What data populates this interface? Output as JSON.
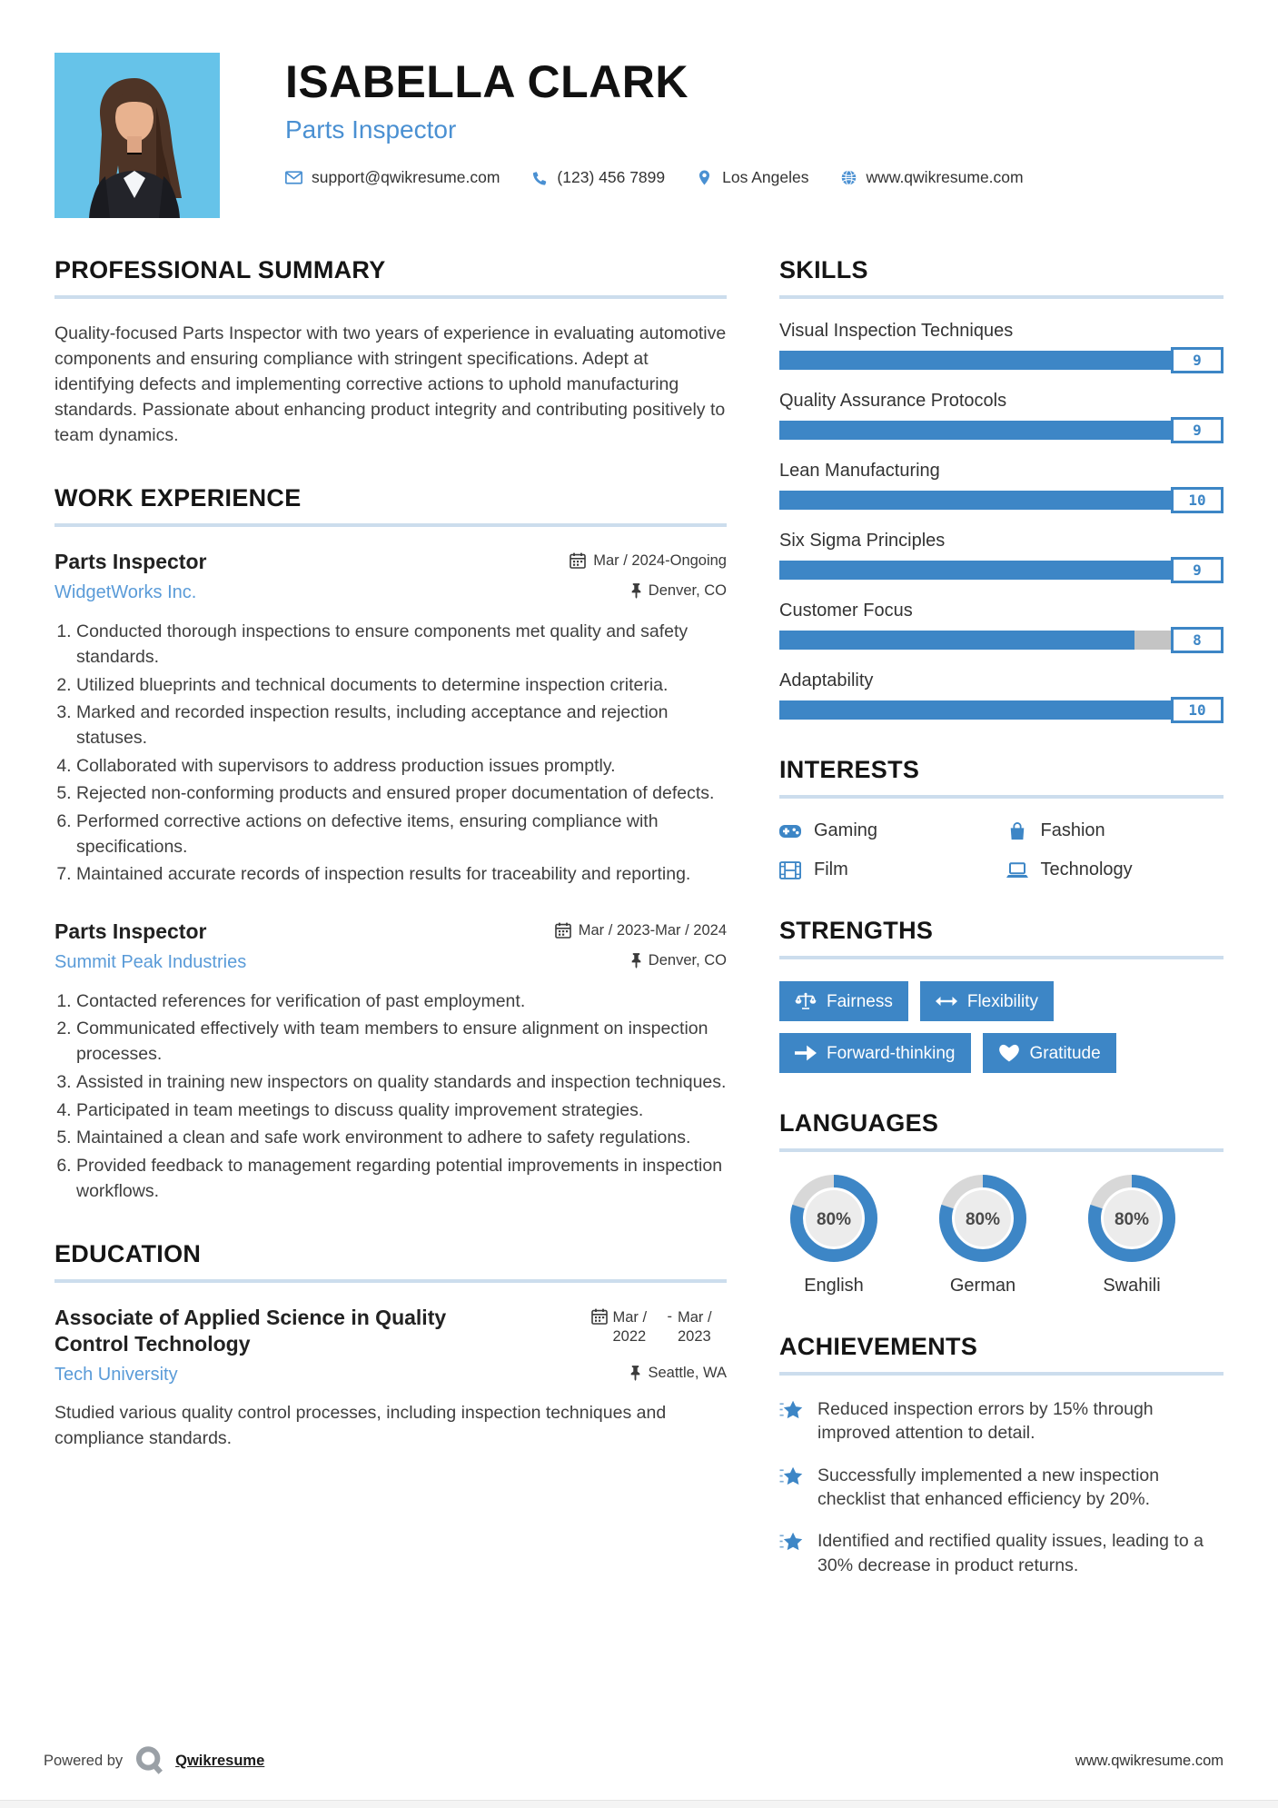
{
  "colors": {
    "accent": "#3d86c6",
    "link_blue": "#4a90d2",
    "company_blue": "#5a9bd8",
    "photo_bg": "#66c3e9",
    "bar_track": "#c4c4c4",
    "heading_underline": "#ccdded",
    "donut_track": "#d8d8d8",
    "donut_inner": "#ececec"
  },
  "header": {
    "name": "ISABELLA CLARK",
    "title": "Parts Inspector",
    "contacts": [
      {
        "icon": "email-icon",
        "text": "support@qwikresume.com"
      },
      {
        "icon": "phone-icon",
        "text": "(123) 456 7899"
      },
      {
        "icon": "location-icon",
        "text": "Los Angeles"
      },
      {
        "icon": "globe-icon",
        "text": "www.qwikresume.com"
      }
    ]
  },
  "summary": {
    "heading": "PROFESSIONAL SUMMARY",
    "text": "Quality-focused Parts Inspector with two years of experience in evaluating automotive components and ensuring compliance with stringent specifications. Adept at identifying defects and implementing corrective actions to uphold manufacturing standards. Passionate about enhancing product integrity and contributing positively to team dynamics."
  },
  "work": {
    "heading": "WORK EXPERIENCE",
    "jobs": [
      {
        "role": "Parts Inspector",
        "date": "Mar / 2024-Ongoing",
        "company": "WidgetWorks Inc.",
        "location": "Denver, CO",
        "bullets": [
          "Conducted thorough inspections to ensure components met quality and safety standards.",
          "Utilized blueprints and technical documents to determine inspection criteria.",
          "Marked and recorded inspection results, including acceptance and rejection statuses.",
          "Collaborated with supervisors to address production issues promptly.",
          "Rejected non-conforming products and ensured proper documentation of defects.",
          "Performed corrective actions on defective items, ensuring compliance with specifications.",
          "Maintained accurate records of inspection results for traceability and reporting."
        ]
      },
      {
        "role": "Parts Inspector",
        "date": "Mar / 2023-Mar / 2024",
        "company": "Summit Peak Industries",
        "location": "Denver, CO",
        "bullets": [
          "Contacted references for verification of past employment.",
          "Communicated effectively with team members to ensure alignment on inspection processes.",
          "Assisted in training new inspectors on quality standards and inspection techniques.",
          "Participated in team meetings to discuss quality improvement strategies.",
          "Maintained a clean and safe work environment to adhere to safety regulations.",
          "Provided feedback to management regarding potential improvements in inspection workflows."
        ]
      }
    ]
  },
  "education": {
    "heading": "EDUCATION",
    "degree": "Associate of Applied Science in Quality Control Technology",
    "date_from": "Mar / 2022",
    "date_sep": "-",
    "date_to": "Mar / 2023",
    "school": "Tech University",
    "location": "Seattle, WA",
    "description": "Studied various quality control processes, including inspection techniques and compliance standards."
  },
  "skills": {
    "heading": "SKILLS",
    "max": 10,
    "items": [
      {
        "label": "Visual Inspection Techniques",
        "value": 9
      },
      {
        "label": "Quality Assurance Protocols",
        "value": 9
      },
      {
        "label": "Lean Manufacturing",
        "value": 10
      },
      {
        "label": "Six Sigma Principles",
        "value": 9
      },
      {
        "label": "Customer Focus",
        "value": 8
      },
      {
        "label": "Adaptability",
        "value": 10
      }
    ]
  },
  "interests": {
    "heading": "INTERESTS",
    "items": [
      {
        "icon": "gamepad-icon",
        "label": "Gaming"
      },
      {
        "icon": "shopping-bag-icon",
        "label": "Fashion"
      },
      {
        "icon": "film-icon",
        "label": "Film"
      },
      {
        "icon": "laptop-icon",
        "label": "Technology"
      }
    ]
  },
  "strengths": {
    "heading": "STRENGTHS",
    "items": [
      {
        "icon": "scales-icon",
        "label": "Fairness"
      },
      {
        "icon": "arrows-left-right-icon",
        "label": "Flexibility"
      },
      {
        "icon": "arrow-right-icon",
        "label": "Forward-thinking"
      },
      {
        "icon": "heart-icon",
        "label": "Gratitude"
      }
    ]
  },
  "languages": {
    "heading": "LANGUAGES",
    "items": [
      {
        "label": "English",
        "percent": 80,
        "percent_label": "80%"
      },
      {
        "label": "German",
        "percent": 80,
        "percent_label": "80%"
      },
      {
        "label": "Swahili",
        "percent": 80,
        "percent_label": "80%"
      }
    ]
  },
  "achievements": {
    "heading": "ACHIEVEMENTS",
    "items": [
      {
        "text": "Reduced inspection errors by 15% through improved attention to detail."
      },
      {
        "text": "Successfully implemented a new inspection checklist that enhanced efficiency by 20%."
      },
      {
        "text": "Identified and rectified quality issues, leading to a 30% decrease in product returns."
      }
    ]
  },
  "footer": {
    "powered_by": "Powered by",
    "brand": "Qwikresume",
    "site": "www.qwikresume.com"
  }
}
